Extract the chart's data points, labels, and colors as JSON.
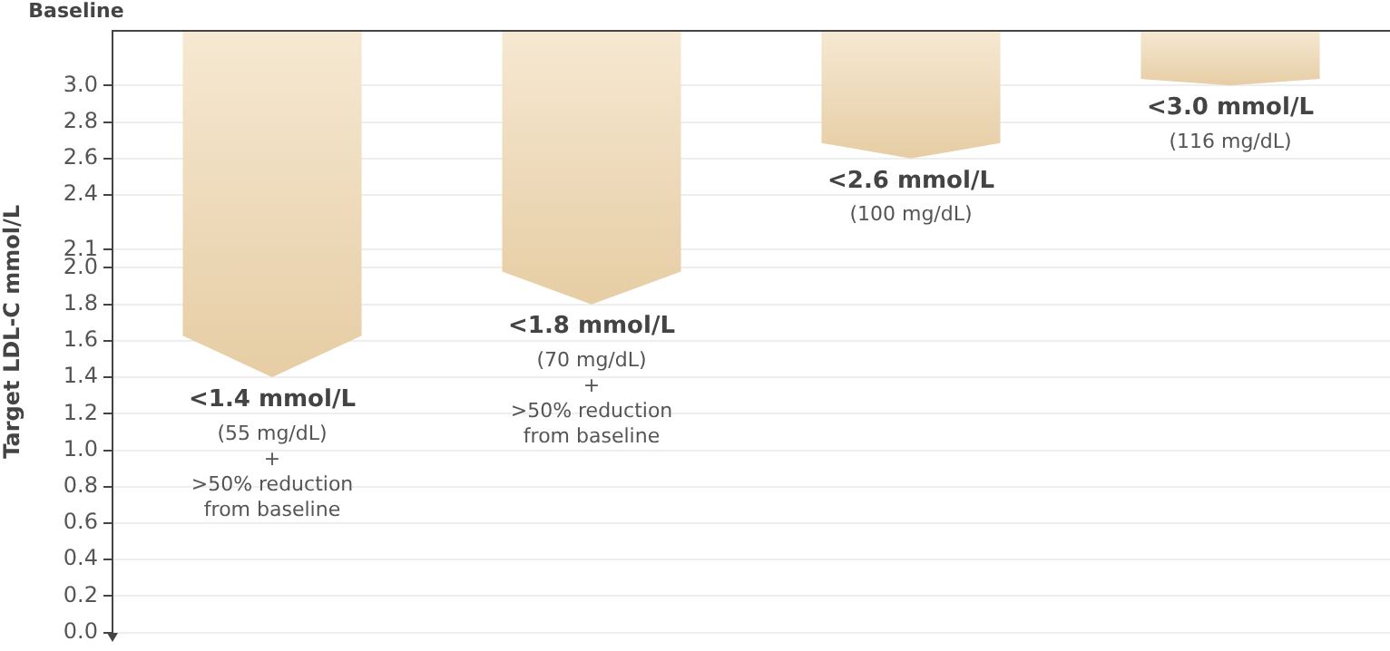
{
  "chart_data": {
    "type": "bar",
    "ylabel": "Target LDL-C mmol/L",
    "categories": [
      null,
      null,
      null,
      null
    ],
    "base": [
      3.3,
      3.3,
      3.3,
      3.3
    ],
    "values": [
      -1.9,
      -1.5,
      -0.7,
      -0.3
    ],
    "color": "#e6cda4",
    "annotations": [
      {
        "text": "<1.4 mmol/L\n(55 mg/dL)\n+\n>50% reduction\nfrom baseline",
        "y": 1.4
      },
      {
        "text": "<1.8 mmol/L\n(70 mg/dL)\n+\n>50% reduction\nfrom baseline",
        "y": 1.8
      },
      {
        "text": "<2.6 mmol/L\n(100 mg/dL)",
        "y": 2.6
      },
      {
        "text": "<3.0 mmol/L\n(116 mg/dL)",
        "y": 3.0
      }
    ],
    "ylim": [
      0,
      3.3
    ],
    "yticks": [
      {
        "value": 0,
        "label": "0.0"
      },
      0.2,
      0.4,
      0.6,
      0.8,
      {
        "value": 1,
        "label": "1.0"
      },
      1.2,
      1.4,
      1.6,
      1.8,
      {
        "value": 2,
        "label": "2.0"
      },
      2.1,
      2.4,
      2.6,
      2.8,
      {
        "value": 3,
        "label": "3.0"
      }
    ],
    "ref_lines": [
      {
        "axis": "y",
        "value": 3.3,
        "label": "Baseline",
        "color": "#444444"
      }
    ],
    "grid": "y",
    "legend": false,
    "tick_labels": "y"
  }
}
